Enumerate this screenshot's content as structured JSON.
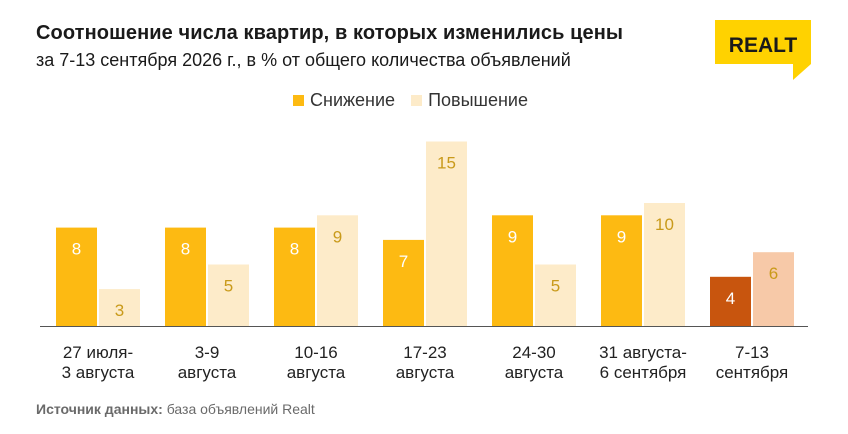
{
  "header": {
    "title": "Соотношение числа квартир, в которых изменились цены",
    "subtitle": "за 7-13 сентября 2026 г., в % от общего количества объявлений"
  },
  "logo": {
    "text": "REALT",
    "bg_color": "#FFD200"
  },
  "source": {
    "label": "Источник данных:",
    "text": "база объявлений Realt"
  },
  "colors": {
    "decrease": "#FDBA12",
    "increase": "#FDEBC9",
    "decrease_highlight": "#C8550E",
    "increase_highlight": "#F7C9A8",
    "label_on_dark": "#ffffff",
    "label_on_light": "#C99A1A"
  },
  "chart_data": {
    "type": "bar",
    "categories": [
      [
        "27 июля-",
        "3 августа"
      ],
      [
        "3-9",
        "августа"
      ],
      [
        "10-16",
        "августа"
      ],
      [
        "17-23",
        "августа"
      ],
      [
        "24-30",
        "августа"
      ],
      [
        "31 августа-",
        "6 сентября"
      ],
      [
        "7-13",
        "сентября"
      ]
    ],
    "series": [
      {
        "name": "Снижение",
        "values": [
          8,
          8,
          8,
          7,
          9,
          9,
          4
        ]
      },
      {
        "name": "Повышение",
        "values": [
          3,
          5,
          9,
          15,
          5,
          10,
          6
        ]
      }
    ],
    "highlight_index": 6,
    "legend": "top-center",
    "grid": false,
    "ylim": [
      0,
      15
    ]
  }
}
